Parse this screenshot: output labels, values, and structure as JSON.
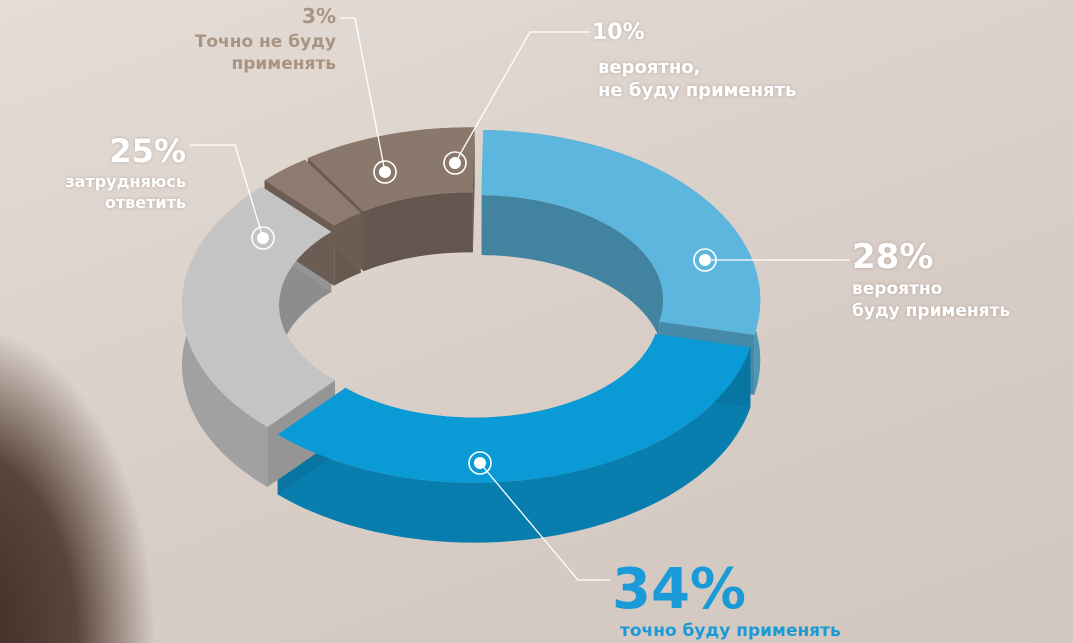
{
  "chart_data": {
    "type": "donut",
    "categories": [
      "вероятно,\nне буду применять",
      "вероятно\nбуду применять",
      "точно буду применять",
      "затрудняюсь\nответить",
      "Точно не буду\nприменять"
    ],
    "values": [
      10,
      28,
      34,
      25,
      3
    ],
    "value_labels": [
      "10%",
      "28%",
      "34%",
      "25%",
      "3%"
    ],
    "colors": [
      "#8b786c",
      "#5cb6de",
      "#0a9ad6",
      "#c5c4c4",
      "#8e7b6f"
    ]
  }
}
